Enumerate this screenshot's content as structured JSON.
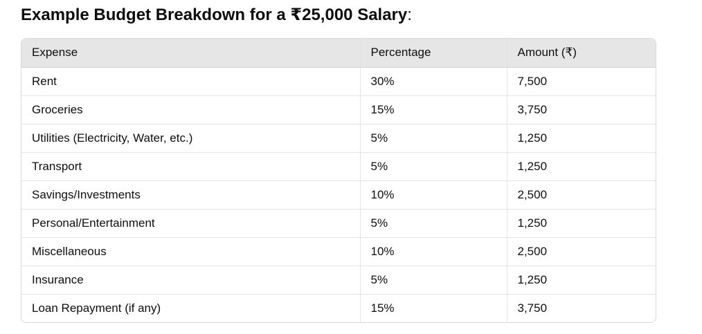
{
  "heading": {
    "title": "Example Budget Breakdown for a ₹25,000 Salary",
    "suffix": ":"
  },
  "table": {
    "columns": [
      "Expense",
      "Percentage",
      "Amount (₹)"
    ],
    "rows": [
      [
        "Rent",
        "30%",
        "7,500"
      ],
      [
        "Groceries",
        "15%",
        "3,750"
      ],
      [
        "Utilities (Electricity, Water, etc.)",
        "5%",
        "1,250"
      ],
      [
        "Transport",
        "5%",
        "1,250"
      ],
      [
        "Savings/Investments",
        "10%",
        "2,500"
      ],
      [
        "Personal/Entertainment",
        "5%",
        "1,250"
      ],
      [
        "Miscellaneous",
        "10%",
        "2,500"
      ],
      [
        "Insurance",
        "5%",
        "1,250"
      ],
      [
        "Loan Repayment (if any)",
        "15%",
        "3,750"
      ]
    ]
  }
}
